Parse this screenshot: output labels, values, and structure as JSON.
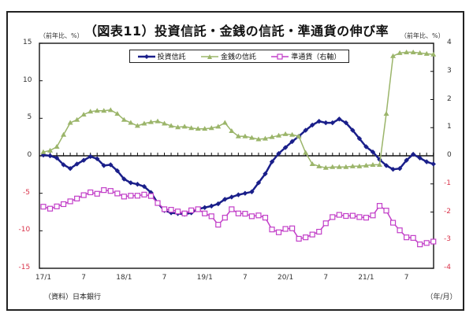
{
  "chart_data": {
    "type": "line",
    "title": "（図表11）投資信託・金銭の信託・準通貨の伸び率",
    "ylabel_left": "（前年比、%）",
    "ylabel_right": "（前年比、%）",
    "xlabel": "（年/月）",
    "source": "（資料）日本銀行",
    "ylim_left": [
      -15,
      15
    ],
    "ylim_right": [
      -4,
      4
    ],
    "yticks_left": [
      15,
      10,
      5,
      0,
      -5,
      -10,
      -15
    ],
    "yticks_right": [
      4,
      3,
      2,
      1,
      0,
      -1,
      -2,
      -3,
      -4
    ],
    "xtick_labels": [
      "17/1",
      "7",
      "18/1",
      "7",
      "19/1",
      "7",
      "20/1",
      "7",
      "21/1",
      "7"
    ],
    "xtick_index": [
      0,
      6,
      12,
      18,
      24,
      30,
      36,
      42,
      48,
      54
    ],
    "legend_position": "top-center",
    "grid": false,
    "n_points": 59,
    "series": [
      {
        "name": "投資信託",
        "axis": "left",
        "color": "#1a1f8a",
        "marker": "diamond",
        "values": [
          0.1,
          0.0,
          -0.3,
          -1.2,
          -1.7,
          -1.1,
          -0.6,
          -0.1,
          -0.4,
          -1.3,
          -1.2,
          -2.0,
          -3.1,
          -3.6,
          -3.8,
          -4.1,
          -4.9,
          -6.3,
          -7.3,
          -7.6,
          -7.7,
          -7.8,
          -7.6,
          -7.1,
          -6.9,
          -6.7,
          -6.4,
          -5.8,
          -5.5,
          -5.2,
          -5.0,
          -4.8,
          -3.6,
          -2.4,
          -0.8,
          0.3,
          1.1,
          1.9,
          2.6,
          3.4,
          4.1,
          4.6,
          4.4,
          4.4,
          4.9,
          4.4,
          3.4,
          2.3,
          1.2,
          0.5,
          -0.5,
          -1.3,
          -1.8,
          -1.7,
          -0.6,
          0.2,
          -0.3,
          -0.8,
          -1.1
        ]
      },
      {
        "name": "金銭の信託",
        "axis": "left",
        "color": "#9bb56a",
        "marker": "triangle",
        "values": [
          0.5,
          0.7,
          1.2,
          2.8,
          4.4,
          4.8,
          5.5,
          5.9,
          6.0,
          6.0,
          6.1,
          5.6,
          4.8,
          4.4,
          4.0,
          4.3,
          4.5,
          4.6,
          4.3,
          4.0,
          3.8,
          3.9,
          3.7,
          3.6,
          3.6,
          3.7,
          3.9,
          4.4,
          3.3,
          2.6,
          2.6,
          2.4,
          2.2,
          2.3,
          2.5,
          2.7,
          2.9,
          2.8,
          2.6,
          0.4,
          -1.1,
          -1.4,
          -1.6,
          -1.5,
          -1.5,
          -1.5,
          -1.4,
          -1.4,
          -1.3,
          -1.2,
          -1.2,
          5.6,
          13.3,
          13.7,
          13.8,
          13.8,
          13.7,
          13.6,
          13.5
        ]
      },
      {
        "name": "準通貨（右軸）",
        "axis": "right",
        "color": "#c23fc8",
        "marker": "square-open",
        "values": [
          -1.81,
          -1.88,
          -1.8,
          -1.72,
          -1.62,
          -1.52,
          -1.4,
          -1.3,
          -1.35,
          -1.22,
          -1.25,
          -1.34,
          -1.45,
          -1.42,
          -1.42,
          -1.38,
          -1.43,
          -1.68,
          -1.9,
          -1.92,
          -1.98,
          -2.05,
          -1.94,
          -1.9,
          -2.05,
          -2.15,
          -2.45,
          -2.2,
          -1.9,
          -2.05,
          -2.06,
          -2.15,
          -2.12,
          -2.2,
          -2.62,
          -2.72,
          -2.6,
          -2.58,
          -2.95,
          -2.9,
          -2.8,
          -2.7,
          -2.4,
          -2.18,
          -2.1,
          -2.14,
          -2.13,
          -2.18,
          -2.2,
          -2.12,
          -1.78,
          -1.95,
          -2.38,
          -2.65,
          -2.9,
          -2.92,
          -3.15,
          -3.1,
          -3.05
        ]
      }
    ]
  }
}
